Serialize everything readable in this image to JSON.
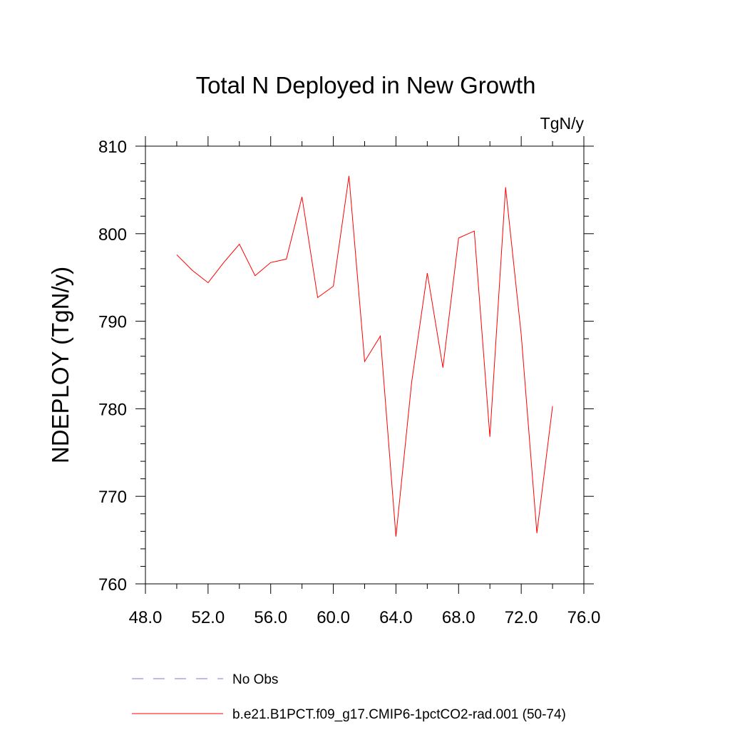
{
  "chart_data": {
    "type": "line",
    "title": "Total N Deployed in New Growth",
    "units_label": "TgN/y",
    "xlabel": "",
    "ylabel": "NDEPLOY  (TgN/y)",
    "xlim": [
      48,
      76
    ],
    "ylim": [
      760,
      810
    ],
    "x_ticks": [
      48,
      52,
      56,
      60,
      64,
      68,
      72,
      76
    ],
    "x_tick_labels": [
      "48.0",
      "52.0",
      "56.0",
      "60.0",
      "64.0",
      "68.0",
      "72.0",
      "76.0"
    ],
    "y_ticks": [
      760,
      770,
      780,
      790,
      800,
      810
    ],
    "y_tick_labels": [
      "760",
      "770",
      "780",
      "790",
      "800",
      "810"
    ],
    "grid": false,
    "legend_position": "bottom",
    "series": [
      {
        "name": "b.e21.B1PCT.f09_g17.CMIP6-1pctCO2-rad.001 (50-74)",
        "color": "#ff0000",
        "style": "solid",
        "x": [
          50,
          51,
          52,
          53,
          54,
          55,
          56,
          57,
          58,
          59,
          60,
          61,
          62,
          63,
          64,
          65,
          66,
          67,
          68,
          69,
          70,
          71,
          72,
          73,
          74
        ],
        "y": [
          797.6,
          795.8,
          794.4,
          796.7,
          798.8,
          795.2,
          796.7,
          797.1,
          804.2,
          792.7,
          794.0,
          806.6,
          785.4,
          788.3,
          765.4,
          783.0,
          795.5,
          784.7,
          799.5,
          800.3,
          776.8,
          805.3,
          788.5,
          765.8,
          780.3
        ]
      }
    ],
    "legend": [
      {
        "label": "No Obs",
        "color": "#7b7bd6",
        "style": "dashed"
      },
      {
        "label": "b.e21.B1PCT.f09_g17.CMIP6-1pctCO2-rad.001 (50-74)",
        "color": "#ff0000",
        "style": "solid"
      }
    ]
  }
}
